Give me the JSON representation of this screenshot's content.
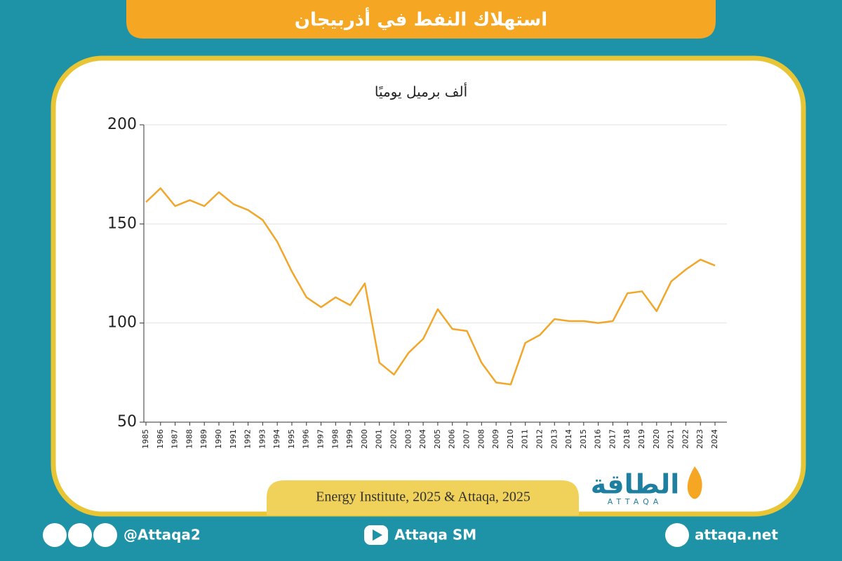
{
  "header": {
    "title": "استهلاك النفط في أذربيجان"
  },
  "chart_data": {
    "type": "line",
    "subtitle": "ألف برميل يوميًا",
    "categories": [
      "1985",
      "1986",
      "1987",
      "1988",
      "1989",
      "1990",
      "1991",
      "1992",
      "1993",
      "1994",
      "1995",
      "1996",
      "1997",
      "1998",
      "1999",
      "2000",
      "2001",
      "2002",
      "2003",
      "2004",
      "2005",
      "2006",
      "2007",
      "2008",
      "2009",
      "2010",
      "2011",
      "2012",
      "2013",
      "2014",
      "2015",
      "2016",
      "2017",
      "2018",
      "2019",
      "2020",
      "2021",
      "2022",
      "2023",
      "2024"
    ],
    "values": [
      161,
      168,
      159,
      162,
      159,
      166,
      160,
      157,
      152,
      141,
      126,
      113,
      108,
      113,
      109,
      120,
      80,
      74,
      85,
      92,
      107,
      97,
      96,
      80,
      70,
      69,
      90,
      94,
      102,
      101,
      101,
      100,
      101,
      115,
      116,
      106,
      121,
      127,
      132,
      129
    ],
    "color": "#f2a62a",
    "ylim": [
      50,
      200
    ],
    "yticks": [
      50,
      100,
      150,
      200
    ],
    "grid": true,
    "source": "Energy Institute, 2025 & Attaqa, 2025"
  },
  "logo": {
    "name": "الطاقة",
    "latin": "ATTAQA"
  },
  "footer": {
    "social": "@Attaqa2",
    "youtube": "Attaqa SM",
    "website": "attaqa.net"
  }
}
